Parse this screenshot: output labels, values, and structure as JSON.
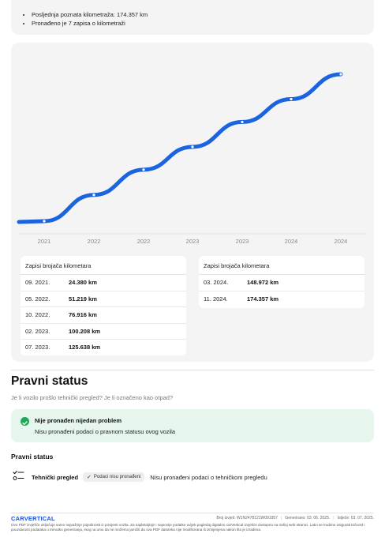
{
  "summary": {
    "items": [
      "Posljednja poznata kilometraža: 174.357 km",
      "Pronađeno je 7 zapisa o kilometraži"
    ]
  },
  "chart_data": {
    "type": "line",
    "x": [
      "09. 2021.",
      "05. 2022.",
      "10. 2022.",
      "02. 2023.",
      "07. 2023.",
      "03. 2024.",
      "11. 2024."
    ],
    "values": [
      24380,
      51219,
      76916,
      100208,
      125638,
      148972,
      174357
    ],
    "tick_labels": [
      "2021",
      "2022",
      "2022",
      "2023",
      "2023",
      "2024",
      "2024"
    ],
    "colors": {
      "line": "#1b64e0",
      "marker_fill": "#ffffff"
    }
  },
  "tables": [
    {
      "title": "Zapisi brojača kilometara",
      "rows": [
        {
          "date": "09. 2021.",
          "value": "24.380 km"
        },
        {
          "date": "05. 2022.",
          "value": "51.219 km"
        },
        {
          "date": "10. 2022.",
          "value": "76.916 km"
        },
        {
          "date": "02. 2023.",
          "value": "100.208 km"
        },
        {
          "date": "07. 2023.",
          "value": "125.638 km"
        }
      ]
    },
    {
      "title": "Zapisi brojača kilometara",
      "rows": [
        {
          "date": "03. 2024.",
          "value": "148.972 km"
        },
        {
          "date": "11. 2024.",
          "value": "174.357 km"
        }
      ]
    }
  ],
  "legal": {
    "title": "Pravni status",
    "subtitle": "Je li vozilo prošlo tehnički pregled? Je li označeno kao otpad?",
    "ok_title": "Nije pronađen nijedan problem",
    "ok_text": "Nisu pronađeni podaci o pravnom statusu ovog vozila",
    "subheading": "Pravni status",
    "check_label": "Tehnički pregled",
    "pill": "Podaci nisu pronađeni",
    "message": "Nisu pronađeni podaci o tehničkom pregledu"
  },
  "footer": {
    "logo": "CARVERTICAL",
    "report_no": "Broj izvješ: W1N2478121W091957",
    "generated": "Generirano: 03. 06. 2025.",
    "expires": "Istječe: 03. 07. 2025.",
    "disclaimer": "Ovo PDF izvješće uključuje samo najvažnije pojedinosti iz povijesti vozila. Za najdetaljnije i najnovije podatke uvijek pogledaj digitalno carVertical izvješće dostupno na našoj web stranici. Lako se trudimo osigurati točnost i pouzdanost podataka u trenutku generiranja, imaj na umu da ne možemo jamčiti da ova PDF datoteka nije modificirana ili izmijenjena nakon što je izrađena."
  }
}
